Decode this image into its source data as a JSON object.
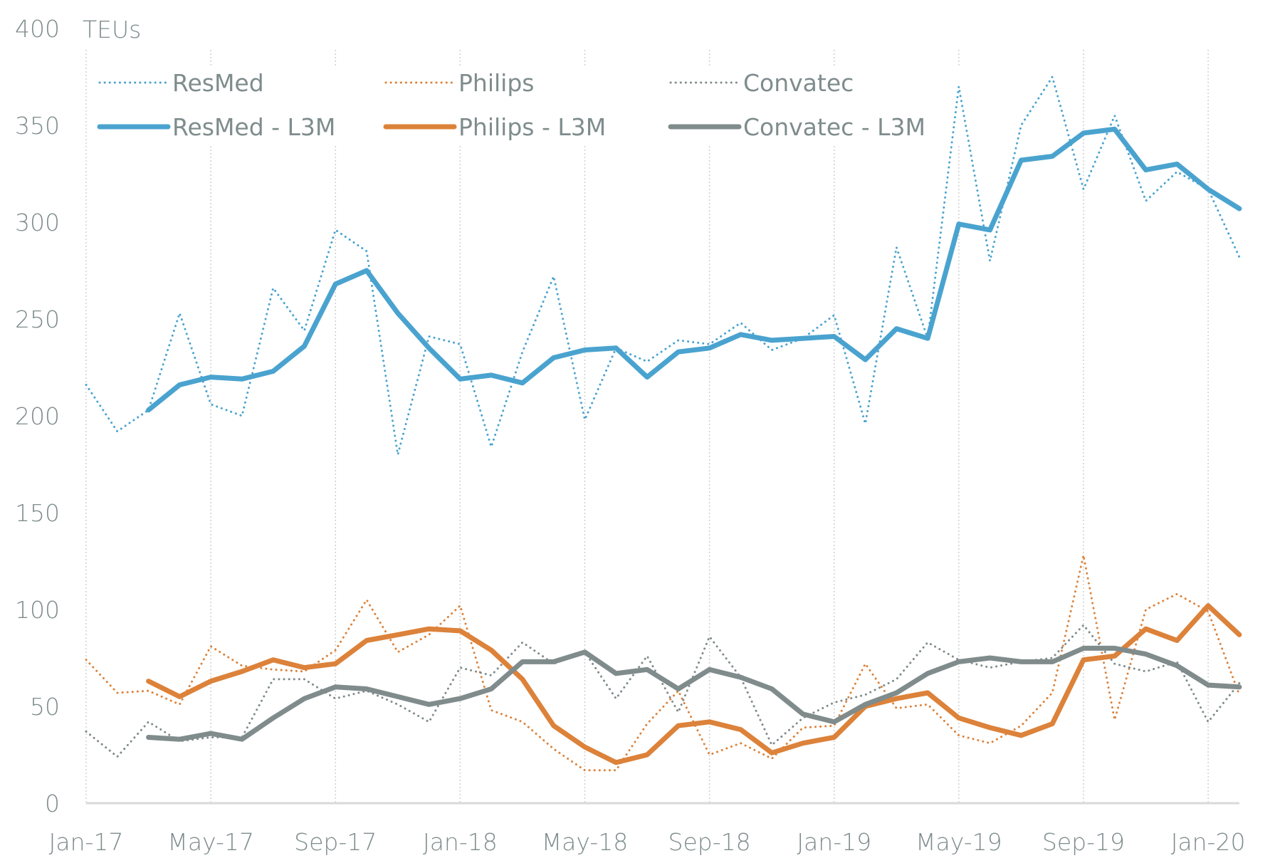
{
  "chart_data": {
    "type": "line",
    "title": "",
    "ylabel": "TEUs",
    "xlabel": "",
    "ylim": [
      0,
      400
    ],
    "yticks": [
      0,
      50,
      100,
      150,
      200,
      250,
      300,
      350,
      400
    ],
    "grid": "vertical dotted at labeled months",
    "legend": "top, 3 columns x 2 rows",
    "x": [
      "Jan-17",
      "Feb-17",
      "Mar-17",
      "Apr-17",
      "May-17",
      "Jun-17",
      "Jul-17",
      "Aug-17",
      "Sep-17",
      "Oct-17",
      "Nov-17",
      "Dec-17",
      "Jan-18",
      "Feb-18",
      "Mar-18",
      "Apr-18",
      "May-18",
      "Jun-18",
      "Jul-18",
      "Aug-18",
      "Sep-18",
      "Oct-18",
      "Nov-18",
      "Dec-18",
      "Jan-19",
      "Feb-19",
      "Mar-19",
      "Apr-19",
      "May-19",
      "Jun-19",
      "Jul-19",
      "Aug-19",
      "Sep-19",
      "Oct-19",
      "Nov-19",
      "Dec-19",
      "Jan-20",
      "Feb-20"
    ],
    "xtick_labels": [
      "Jan-17",
      "May-17",
      "Sep-17",
      "Jan-18",
      "May-18",
      "Sep-18",
      "Jan-19",
      "May-19",
      "Sep-19",
      "Jan-20"
    ],
    "series": [
      {
        "name": "ResMed",
        "style": "dotted",
        "color": "#4aa3cf",
        "values": [
          216,
          192,
          203,
          253,
          206,
          200,
          266,
          244,
          296,
          285,
          180,
          241,
          237,
          184,
          233,
          272,
          198,
          235,
          228,
          239,
          237,
          248,
          234,
          240,
          252,
          196,
          287,
          240,
          370,
          280,
          350,
          375,
          317,
          355,
          311,
          326,
          317,
          282
        ]
      },
      {
        "name": "Philips",
        "style": "dotted",
        "color": "#dc823a",
        "values": [
          74,
          57,
          58,
          51,
          81,
          71,
          69,
          68,
          79,
          105,
          78,
          87,
          102,
          48,
          42,
          28,
          17,
          17,
          41,
          58,
          25,
          31,
          23,
          39,
          40,
          72,
          49,
          51,
          35,
          31,
          40,
          57,
          128,
          43,
          100,
          108,
          99,
          56
        ]
      },
      {
        "name": "Convatec",
        "style": "dotted",
        "color": "#808b8c",
        "values": [
          37,
          24,
          42,
          32,
          34,
          34,
          64,
          64,
          54,
          58,
          51,
          42,
          70,
          66,
          83,
          72,
          78,
          54,
          76,
          47,
          86,
          65,
          30,
          44,
          52,
          56,
          64,
          83,
          74,
          70,
          73,
          75,
          92,
          72,
          68,
          73,
          42,
          62
        ]
      },
      {
        "name": "ResMed - L3M",
        "style": "solid",
        "color": "#4aa3cf",
        "values": [
          null,
          null,
          203,
          216,
          220,
          219,
          223,
          236,
          268,
          275,
          253,
          235,
          219,
          221,
          217,
          230,
          234,
          235,
          220,
          233,
          235,
          242,
          239,
          240,
          241,
          229,
          245,
          240,
          299,
          296,
          332,
          334,
          346,
          348,
          327,
          330,
          317,
          307
        ]
      },
      {
        "name": "Philips - L3M",
        "style": "solid",
        "color": "#dc823a",
        "values": [
          null,
          null,
          63,
          55,
          63,
          68,
          74,
          70,
          72,
          84,
          87,
          90,
          89,
          79,
          64,
          40,
          29,
          21,
          25,
          40,
          42,
          38,
          26,
          31,
          34,
          50,
          54,
          57,
          44,
          39,
          35,
          41,
          74,
          76,
          90,
          84,
          102,
          87
        ]
      },
      {
        "name": "Convatec - L3M",
        "style": "solid",
        "color": "#808b8c",
        "values": [
          null,
          null,
          34,
          33,
          36,
          33,
          44,
          54,
          60,
          59,
          55,
          51,
          54,
          59,
          73,
          73,
          78,
          67,
          69,
          59,
          69,
          65,
          59,
          46,
          42,
          51,
          57,
          67,
          73,
          75,
          73,
          73,
          80,
          80,
          77,
          71,
          61,
          60
        ]
      }
    ]
  }
}
